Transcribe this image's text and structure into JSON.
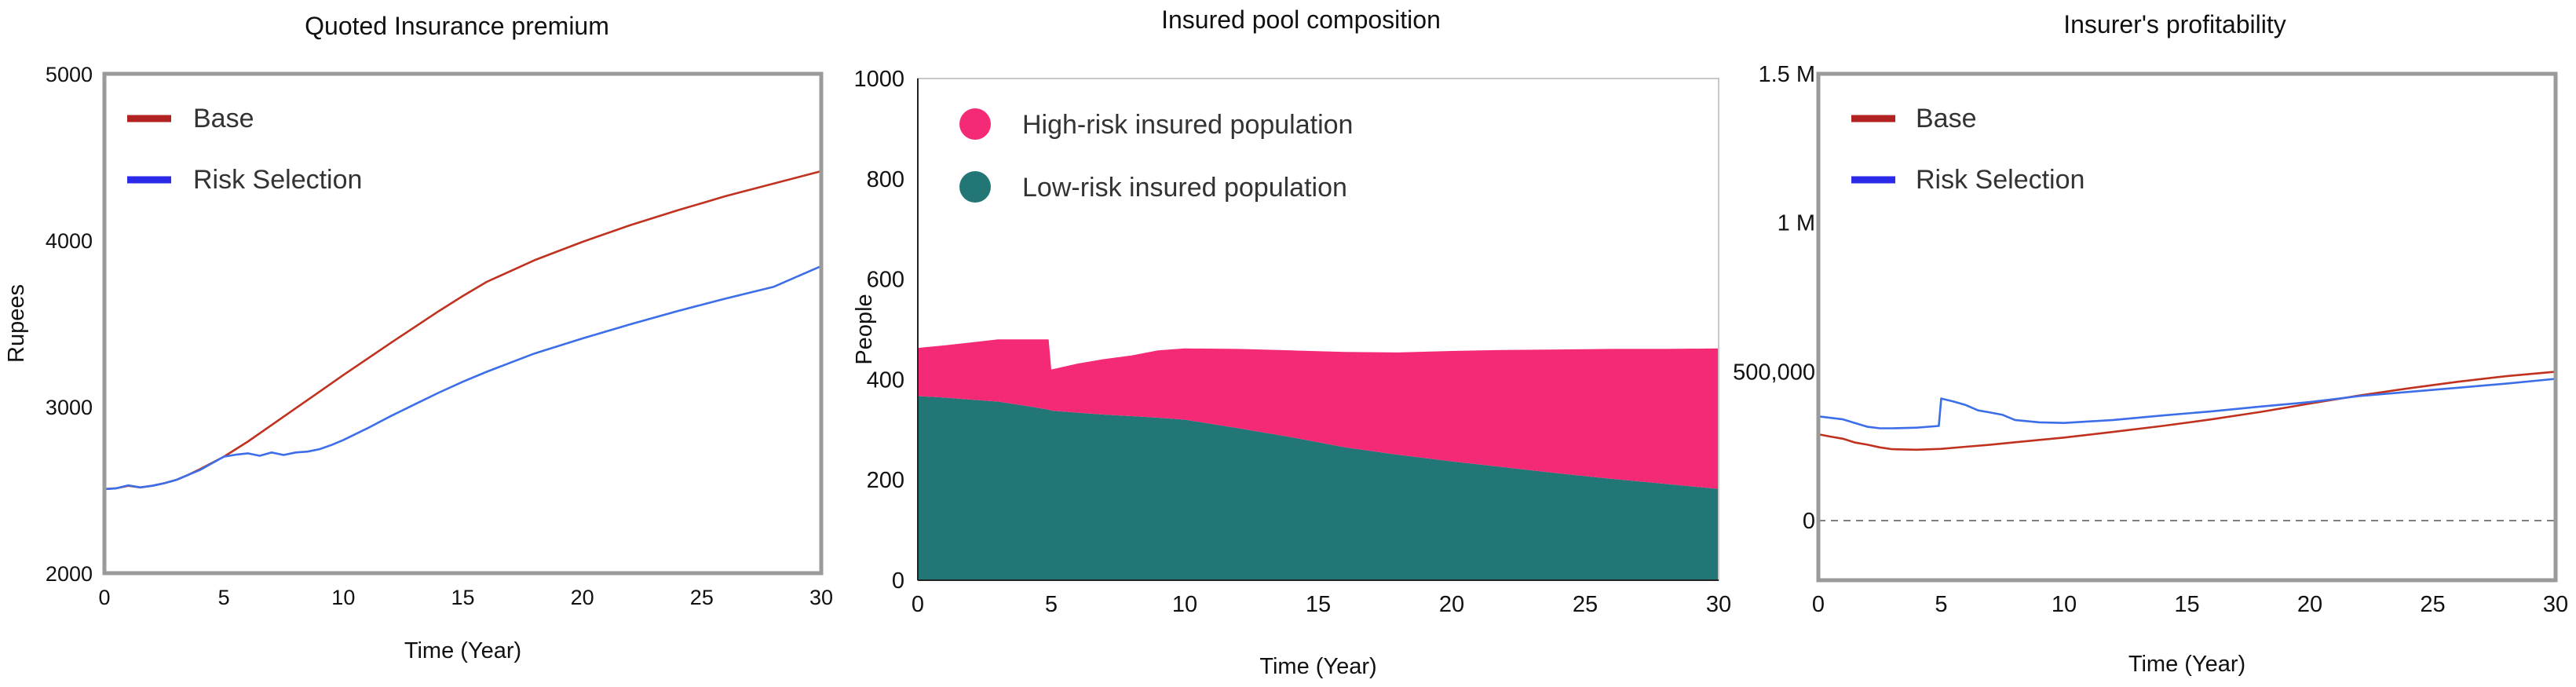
{
  "chart_data": [
    {
      "type": "line",
      "title": "Quoted Insurance premium",
      "xlabel": "Time (Year)",
      "ylabel": "Rupees",
      "xlim": [
        0,
        30
      ],
      "ylim": [
        2000,
        5000
      ],
      "x_ticks": [
        0,
        5,
        10,
        15,
        20,
        25,
        30
      ],
      "y_ticks": [
        2000,
        3000,
        4000,
        5000
      ],
      "x_tick_labels": [
        "0",
        "5",
        "10",
        "15",
        "20",
        "25",
        "30"
      ],
      "y_tick_labels": [
        "2000",
        "3000",
        "4000",
        "5000"
      ],
      "legend_position": "top-left",
      "legend_style": "line",
      "series": [
        {
          "name": "Base",
          "color": "#c0321f",
          "legend_color": "#b22222",
          "x": [
            0,
            0.5,
            1,
            1.5,
            2,
            2.5,
            3,
            3.5,
            4,
            5,
            6,
            7,
            8,
            9,
            10,
            12,
            14,
            15,
            16,
            18,
            20,
            22,
            24,
            26,
            28,
            30
          ],
          "y": [
            2505,
            2510,
            2525,
            2515,
            2525,
            2540,
            2560,
            2590,
            2625,
            2700,
            2790,
            2890,
            2990,
            3090,
            3190,
            3385,
            3575,
            3665,
            3750,
            3880,
            3990,
            4090,
            4180,
            4265,
            4340,
            4415
          ]
        },
        {
          "name": "Risk Selection",
          "color": "#3b6ee8",
          "legend_color": "#2a2ae8",
          "x": [
            0,
            0.5,
            1,
            1.5,
            2,
            2.5,
            3,
            3.5,
            4,
            4.5,
            5,
            5.5,
            6,
            6.5,
            7,
            7.5,
            8,
            8.5,
            9,
            9.5,
            10,
            11,
            12,
            13,
            14,
            15,
            16,
            17,
            18,
            20,
            22,
            24,
            26,
            28,
            30
          ],
          "y": [
            2505,
            2510,
            2528,
            2515,
            2525,
            2540,
            2560,
            2590,
            2620,
            2660,
            2700,
            2712,
            2720,
            2705,
            2725,
            2710,
            2725,
            2730,
            2745,
            2770,
            2800,
            2870,
            2945,
            3015,
            3085,
            3150,
            3210,
            3265,
            3320,
            3410,
            3495,
            3575,
            3650,
            3720,
            3845
          ]
        }
      ]
    },
    {
      "type": "area",
      "stacked": true,
      "title": "Insured pool composition",
      "xlabel": "Time (Year)",
      "ylabel": "People",
      "xlim": [
        0,
        30
      ],
      "ylim": [
        0,
        1000
      ],
      "x_ticks": [
        0,
        5,
        10,
        15,
        20,
        25,
        30
      ],
      "y_ticks": [
        0,
        200,
        400,
        600,
        800,
        1000
      ],
      "x_tick_labels": [
        "0",
        "5",
        "10",
        "15",
        "20",
        "25",
        "30"
      ],
      "y_tick_labels": [
        "0",
        "200",
        "400",
        "600",
        "800",
        "1000"
      ],
      "legend_position": "top-left",
      "legend_style": "dot",
      "x": [
        0,
        1,
        2,
        3,
        4,
        4.9,
        5,
        6,
        7,
        8,
        9,
        10,
        12,
        14,
        16,
        18,
        20,
        22,
        24,
        26,
        28,
        30
      ],
      "series": [
        {
          "name": "Low-risk insured population",
          "color": "#227675",
          "values": [
            367,
            364,
            360,
            356,
            348,
            340,
            338,
            334,
            330,
            327,
            324,
            320,
            303,
            285,
            265,
            250,
            237,
            225,
            213,
            202,
            192,
            182
          ]
        },
        {
          "name": "High-risk insured population",
          "color": "#f42a77",
          "values": [
            96,
            104,
            114,
            124,
            132,
            140,
            82,
            98,
            111,
            121,
            134,
            142,
            158,
            173,
            190,
            204,
            220,
            234,
            247,
            259,
            269,
            280
          ]
        }
      ]
    },
    {
      "type": "line",
      "title": "Insurer's profitability",
      "xlabel": "Time (Year)",
      "ylabel": "",
      "xlim": [
        0,
        30
      ],
      "ylim": [
        -200000,
        1500000
      ],
      "x_ticks": [
        0,
        5,
        10,
        15,
        20,
        25,
        30
      ],
      "y_ticks": [
        0,
        500000,
        1000000,
        1500000
      ],
      "x_tick_labels": [
        "0",
        "5",
        "10",
        "15",
        "20",
        "25",
        "30"
      ],
      "y_tick_labels": [
        "0",
        "500,000",
        "1 M",
        "1.5 M"
      ],
      "zero_line": true,
      "legend_position": "top-left",
      "legend_style": "line",
      "series": [
        {
          "name": "Base",
          "color": "#c0321f",
          "legend_color": "#b22222",
          "x": [
            0,
            0.5,
            1,
            1.5,
            2,
            2.5,
            3,
            4,
            5,
            6,
            7,
            8,
            9,
            10,
            12,
            14,
            16,
            18,
            20,
            22,
            24,
            26,
            28,
            30
          ],
          "y": [
            290000,
            282000,
            275000,
            262000,
            255000,
            246000,
            240000,
            238000,
            241000,
            248000,
            255000,
            263000,
            271000,
            279000,
            298000,
            318000,
            340000,
            365000,
            393000,
            420000,
            444000,
            466000,
            485000,
            500000
          ]
        },
        {
          "name": "Risk Selection",
          "color": "#3b6ee8",
          "legend_color": "#2a2ae8",
          "x": [
            0,
            1,
            2,
            2.5,
            3,
            4,
            4.9,
            5,
            5.5,
            6,
            6.5,
            7,
            7.5,
            8,
            9,
            10,
            12,
            14,
            16,
            18,
            20,
            22,
            24,
            26,
            28,
            30
          ],
          "y": [
            350000,
            340000,
            315000,
            310000,
            310000,
            312000,
            318000,
            410000,
            400000,
            388000,
            370000,
            363000,
            355000,
            338000,
            330000,
            328000,
            338000,
            353000,
            367000,
            383000,
            398000,
            418000,
            432000,
            446000,
            460000,
            476000
          ]
        }
      ]
    }
  ]
}
